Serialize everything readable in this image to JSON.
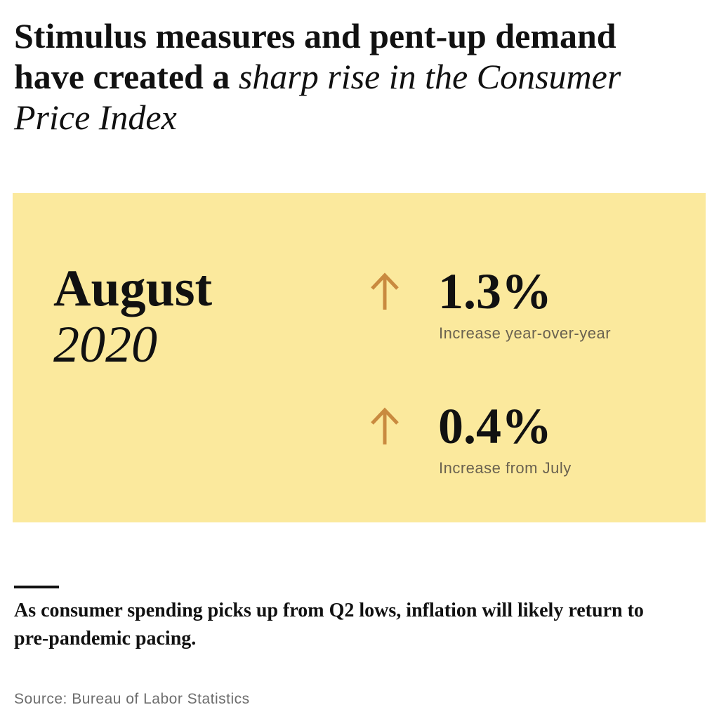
{
  "headline": {
    "bold_part": "Stimulus measures and pent-up demand have created a",
    "italic_part": "sharp rise in the Consumer Price Index"
  },
  "panel": {
    "background_color": "#fbe99d",
    "month": "August",
    "year": "2020",
    "stats": [
      {
        "icon": "arrow-up-icon",
        "icon_color": "#c98a3f",
        "value": "1.3%",
        "description": "Increase year-over-year"
      },
      {
        "icon": "arrow-up-icon",
        "icon_color": "#c98a3f",
        "value": "0.4%",
        "description": "Increase from July"
      }
    ]
  },
  "takeaway": "As consumer spending picks up from Q2 lows, inflation will likely return to pre-pandemic pacing.",
  "source": "Source: Bureau of Labor Statistics"
}
